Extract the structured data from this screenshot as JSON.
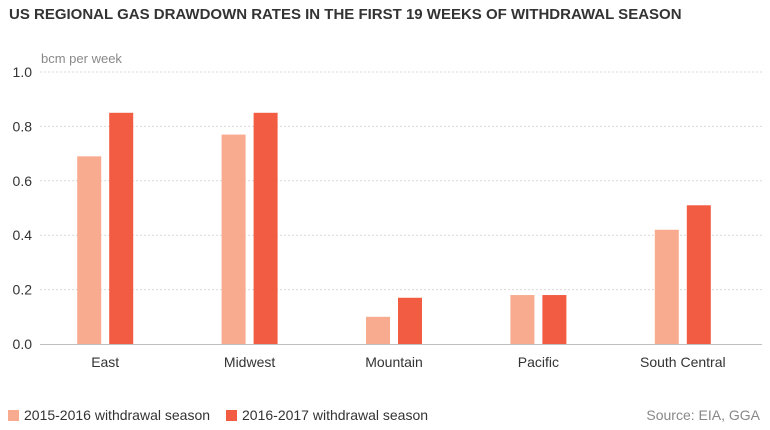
{
  "title": "US REGIONAL GAS DRAWDOWN RATES IN THE FIRST 19 WEEKS OF WITHDRAWAL SEASON",
  "source": "Source: EIA, GGA",
  "chart_data": {
    "type": "bar",
    "title": "US REGIONAL GAS DRAWDOWN RATES IN THE FIRST 19 WEEKS OF WITHDRAWAL SEASON",
    "ylabel": "bcm per week",
    "xlabel": "",
    "categories": [
      "East",
      "Midwest",
      "Mountain",
      "Pacific",
      "South Central"
    ],
    "series": [
      {
        "name": "2015-2016 withdrawal season",
        "color": "#f9ab8f",
        "values": [
          0.69,
          0.77,
          0.1,
          0.18,
          0.42
        ]
      },
      {
        "name": "2016-2017 withdrawal season",
        "color": "#f25c42",
        "values": [
          0.85,
          0.85,
          0.17,
          0.18,
          0.51
        ]
      }
    ],
    "ylim": [
      0,
      1.0
    ],
    "yticks": [
      "0.0",
      "0.2",
      "0.4",
      "0.6",
      "0.8",
      "1.0"
    ],
    "grid": true,
    "legend": "bottom-left"
  }
}
